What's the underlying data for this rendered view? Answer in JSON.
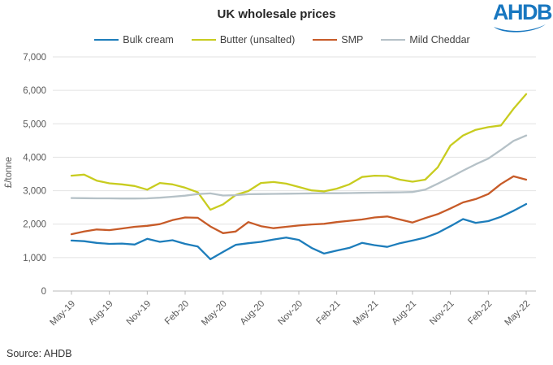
{
  "header": {
    "title": "UK wholesale prices",
    "logo_text": "AHDB",
    "logo_color": "#1877c0"
  },
  "footer": {
    "source": "Source: AHDB"
  },
  "chart_data": {
    "type": "line",
    "title": "UK wholesale prices",
    "ylabel": "£/tonne",
    "ylim": [
      0,
      7000
    ],
    "ytick_step": 1000,
    "y_tick_labels": [
      "0",
      "1,000",
      "2,000",
      "3,000",
      "4,000",
      "5,000",
      "6,000",
      "7,000"
    ],
    "grid": true,
    "legend_position": "top",
    "x_tick_every": 3,
    "x_tick_labels": [
      "May-19",
      "Aug-19",
      "Nov-19",
      "Feb-20",
      "May-20",
      "Aug-20",
      "Nov-20",
      "Feb-21",
      "May-21",
      "Aug-21",
      "Nov-21",
      "Feb-22",
      "May-22"
    ],
    "categories": [
      "May-19",
      "Jun-19",
      "Jul-19",
      "Aug-19",
      "Sep-19",
      "Oct-19",
      "Nov-19",
      "Dec-19",
      "Jan-20",
      "Feb-20",
      "Mar-20",
      "Apr-20",
      "May-20",
      "Jun-20",
      "Jul-20",
      "Aug-20",
      "Sep-20",
      "Oct-20",
      "Nov-20",
      "Dec-20",
      "Jan-21",
      "Feb-21",
      "Mar-21",
      "Apr-21",
      "May-21",
      "Jun-21",
      "Jul-21",
      "Aug-21",
      "Sep-21",
      "Oct-21",
      "Nov-21",
      "Dec-21",
      "Jan-22",
      "Feb-22",
      "Mar-22",
      "Apr-22",
      "May-22"
    ],
    "series": [
      {
        "name": "Bulk cream",
        "color": "#1d7dbb",
        "values": [
          1510,
          1490,
          1440,
          1410,
          1420,
          1390,
          1560,
          1470,
          1520,
          1410,
          1330,
          950,
          1170,
          1380,
          1430,
          1470,
          1540,
          1600,
          1530,
          1290,
          1120,
          1210,
          1290,
          1440,
          1370,
          1320,
          1430,
          1510,
          1600,
          1740,
          1940,
          2150,
          2040,
          2090,
          2220,
          2400,
          2600
        ]
      },
      {
        "name": "Butter (unsalted)",
        "color": "#c8cc1f",
        "values": [
          3450,
          3480,
          3300,
          3220,
          3190,
          3140,
          3030,
          3230,
          3190,
          3090,
          2950,
          2430,
          2590,
          2870,
          2990,
          3230,
          3260,
          3210,
          3110,
          3010,
          2980,
          3060,
          3190,
          3410,
          3450,
          3440,
          3330,
          3270,
          3330,
          3700,
          4350,
          4650,
          4820,
          4900,
          4950,
          5450,
          5890
        ]
      },
      {
        "name": "SMP",
        "color": "#c75b28",
        "values": [
          1700,
          1780,
          1840,
          1820,
          1870,
          1920,
          1950,
          2000,
          2120,
          2200,
          2190,
          1930,
          1730,
          1780,
          2060,
          1940,
          1880,
          1920,
          1960,
          1990,
          2010,
          2060,
          2100,
          2140,
          2200,
          2230,
          2140,
          2050,
          2180,
          2300,
          2470,
          2650,
          2750,
          2900,
          3200,
          3430,
          3330
        ]
      },
      {
        "name": "Mild Cheddar",
        "color": "#b5c1c7",
        "values": [
          2780,
          2775,
          2770,
          2770,
          2765,
          2765,
          2770,
          2790,
          2820,
          2850,
          2900,
          2920,
          2855,
          2865,
          2895,
          2900,
          2905,
          2910,
          2915,
          2920,
          2925,
          2925,
          2930,
          2935,
          2940,
          2945,
          2950,
          2960,
          3030,
          3210,
          3400,
          3600,
          3790,
          3960,
          4220,
          4490,
          4650
        ]
      }
    ]
  }
}
